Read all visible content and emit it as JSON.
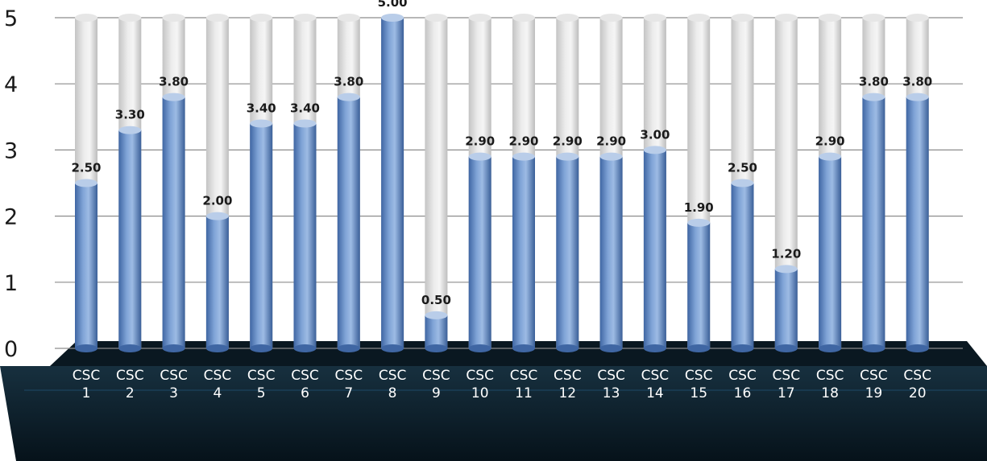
{
  "chart_data": {
    "type": "bar",
    "title": "",
    "xlabel": "",
    "ylabel": "",
    "ylim": [
      0,
      5
    ],
    "yticks": [
      0,
      1,
      2,
      3,
      4,
      5
    ],
    "grid": true,
    "legend": "none",
    "style": "3d-cylinder",
    "categories": [
      "CSC 1",
      "CSC 2",
      "CSC 3",
      "CSC 4",
      "CSC 5",
      "CSC 6",
      "CSC 7",
      "CSC 8",
      "CSC 9",
      "CSC 10",
      "CSC 11",
      "CSC 12",
      "CSC 13",
      "CSC 14",
      "CSC 15",
      "CSC 16",
      "CSC 17",
      "CSC 18",
      "CSC 19",
      "CSC 20"
    ],
    "values": [
      2.5,
      3.3,
      3.8,
      2.0,
      3.4,
      3.4,
      3.8,
      5.0,
      0.5,
      2.9,
      2.9,
      2.9,
      2.9,
      3.0,
      1.9,
      2.5,
      1.2,
      2.9,
      3.8,
      3.8
    ],
    "data_labels": [
      "2.50",
      "3.30",
      "3.80",
      "2.00",
      "3.40",
      "3.40",
      "3.80",
      "5.00",
      "0.50",
      "2.90",
      "2.90",
      "2.90",
      "2.90",
      "3.00",
      "1.90",
      "2.50",
      "1.20",
      "2.90",
      "3.80",
      "3.80"
    ],
    "colors": {
      "bar": "#5b82bd",
      "track": "#d9d9d9",
      "floor": "#0c1c27",
      "grid": "#8c8c8c"
    }
  }
}
